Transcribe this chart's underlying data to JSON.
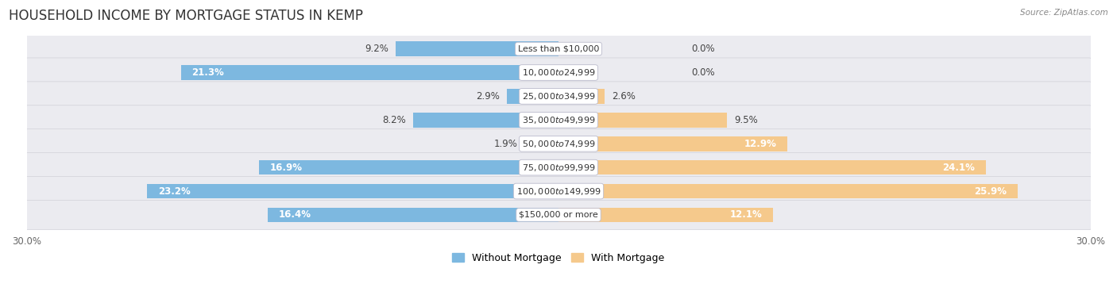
{
  "title": "HOUSEHOLD INCOME BY MORTGAGE STATUS IN KEMP",
  "source": "Source: ZipAtlas.com",
  "categories": [
    "Less than $10,000",
    "$10,000 to $24,999",
    "$25,000 to $34,999",
    "$35,000 to $49,999",
    "$50,000 to $74,999",
    "$75,000 to $99,999",
    "$100,000 to $149,999",
    "$150,000 or more"
  ],
  "without_mortgage": [
    9.2,
    21.3,
    2.9,
    8.2,
    1.9,
    16.9,
    23.2,
    16.4
  ],
  "with_mortgage": [
    0.0,
    0.0,
    2.6,
    9.5,
    12.9,
    24.1,
    25.9,
    12.1
  ],
  "color_without": "#7db8e0",
  "color_with": "#f5c98c",
  "color_without_dark": "#5b9fcc",
  "color_with_dark": "#e8a84a",
  "row_bg_color": "#e8e8ee",
  "row_bg_alt": "#f2f2f6",
  "xlim": 30.0,
  "legend_labels": [
    "Without Mortgage",
    "With Mortgage"
  ],
  "title_fontsize": 12,
  "label_fontsize": 8.5,
  "cat_fontsize": 8.0,
  "tick_fontsize": 8.5,
  "inside_label_threshold": 12.0
}
